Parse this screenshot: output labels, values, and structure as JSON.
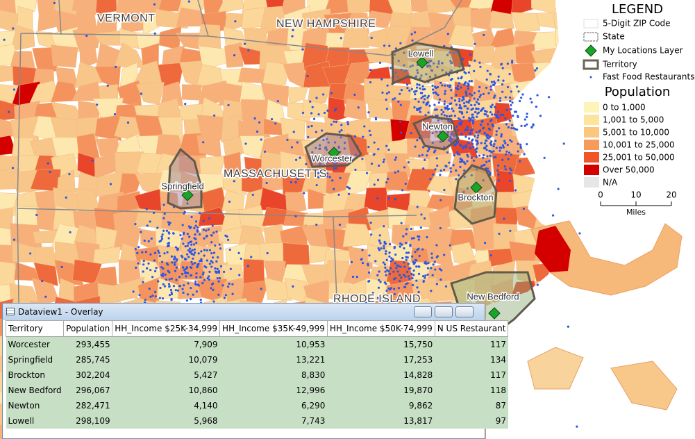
{
  "map": {
    "state_labels": [
      "VERMONT",
      "NEW HAMPSHIRE",
      "MASSACHUSETTS",
      "RHODE ISLAND"
    ],
    "territory_labels": [
      "Lowell",
      "Newton",
      "Worcester",
      "Springfield",
      "Brockton",
      "New Bedford"
    ]
  },
  "legend": {
    "title": "LEGEND",
    "layers": [
      "5-Digit ZIP Code",
      "State",
      "My Locations Layer",
      "Territory",
      "Fast Food Restaurants"
    ],
    "theme_title": "Population",
    "classes": [
      "0 to 1,000",
      "1,001 to 5,000",
      "5,001 to 10,000",
      "10,001 to 25,000",
      "25,001 to 50,000",
      "Over 50,000",
      "N/A"
    ],
    "scale_ticks": [
      "0",
      "10",
      "20"
    ],
    "scale_unit": "Miles"
  },
  "dataview": {
    "title": "Dataview1 - Overlay",
    "columns": [
      "Territory",
      "Population",
      "HH_Income $25K-34,999",
      "HH_Income $35K-49,999",
      "HH_Income $50K-74,999",
      "N US Restaurant"
    ],
    "rows": [
      [
        "Worcester",
        "293,455",
        "7,909",
        "10,953",
        "15,750",
        "117"
      ],
      [
        "Springfield",
        "285,745",
        "10,079",
        "13,221",
        "17,253",
        "134"
      ],
      [
        "Brockton",
        "302,204",
        "5,427",
        "8,830",
        "14,828",
        "117"
      ],
      [
        "New Bedford",
        "296,067",
        "10,860",
        "12,996",
        "19,870",
        "118"
      ],
      [
        "Newton",
        "282,471",
        "4,140",
        "6,290",
        "9,862",
        "87"
      ],
      [
        "Lowell",
        "298,109",
        "5,968",
        "7,743",
        "13,817",
        "97"
      ]
    ]
  }
}
